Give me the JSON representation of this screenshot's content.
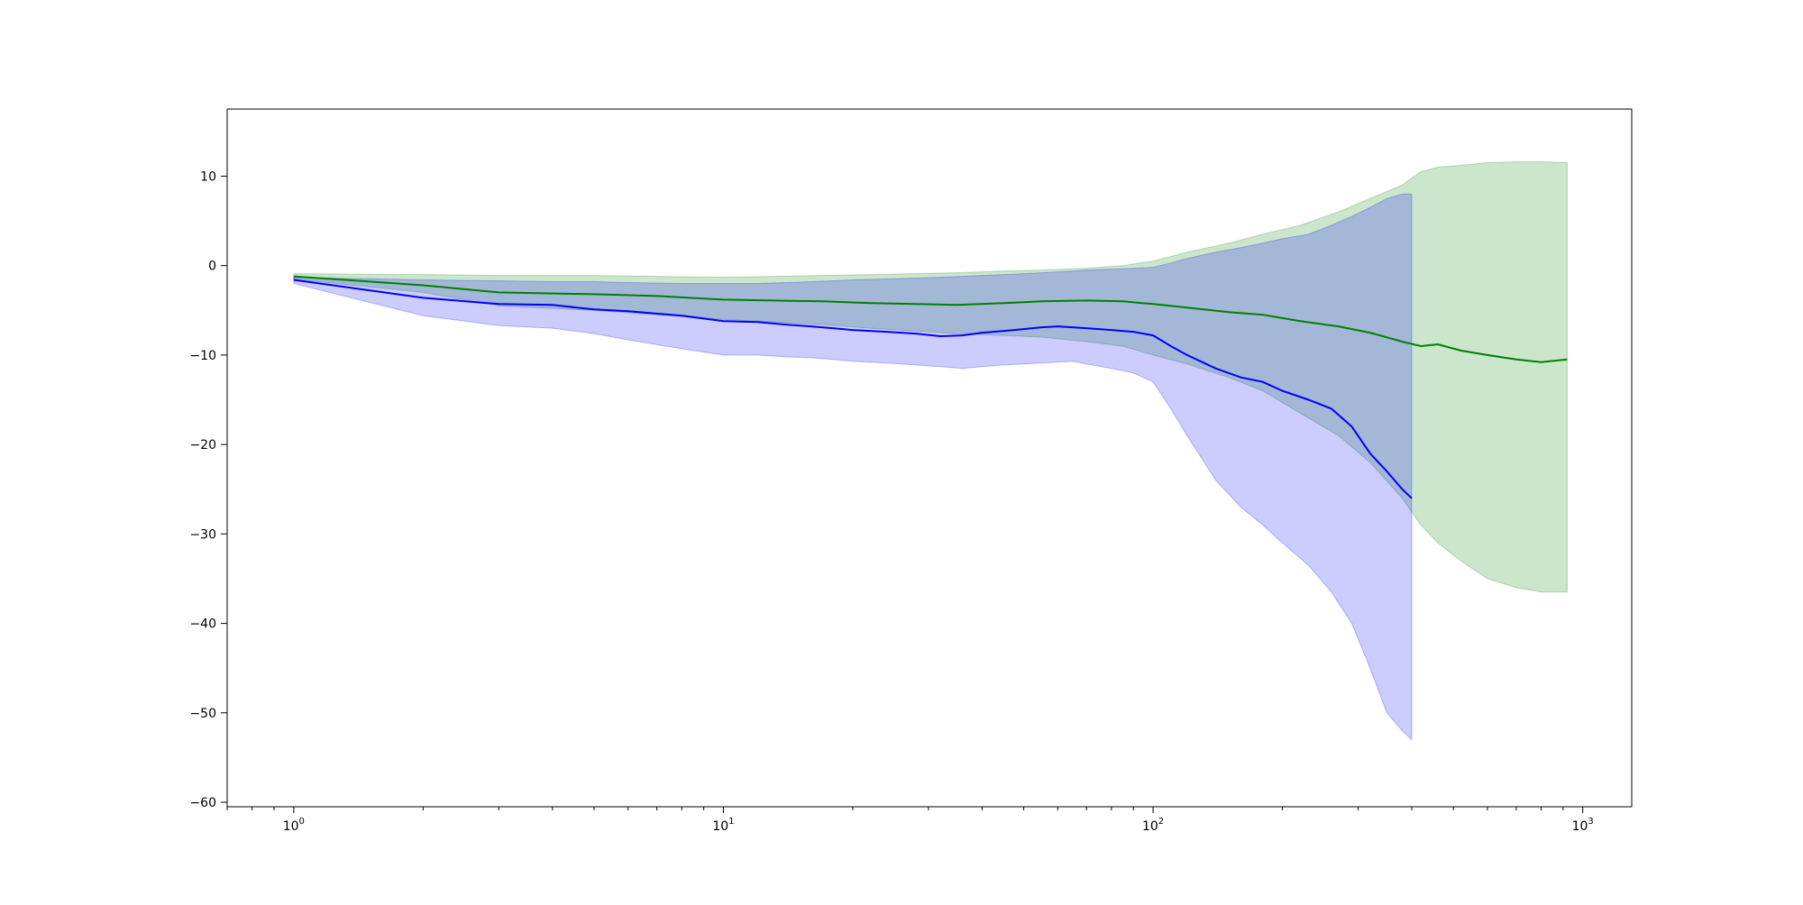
{
  "chart_data": {
    "type": "line",
    "title": "",
    "xlabel": "",
    "ylabel": "",
    "x_scale": "log",
    "xlim": [
      0.7,
      1300
    ],
    "ylim": [
      -60.5,
      17.5
    ],
    "grid": false,
    "legend": "none",
    "x_ticks": [
      {
        "value": 1,
        "base": "10",
        "exp": "0"
      },
      {
        "value": 10,
        "base": "10",
        "exp": "1"
      },
      {
        "value": 100,
        "base": "10",
        "exp": "2"
      },
      {
        "value": 1000,
        "base": "10",
        "exp": "3"
      }
    ],
    "y_ticks": [
      {
        "value": 10,
        "label": "10"
      },
      {
        "value": 0,
        "label": "0"
      },
      {
        "value": -10,
        "label": "−10"
      },
      {
        "value": -20,
        "label": "−20"
      },
      {
        "value": -30,
        "label": "−30"
      },
      {
        "value": -40,
        "label": "−40"
      },
      {
        "value": -50,
        "label": "−50"
      },
      {
        "value": -60,
        "label": "−60"
      }
    ],
    "series": [
      {
        "color": "#008000",
        "band_color": "#008000",
        "band_opacity": 0.2,
        "x": [
          1,
          2,
          3,
          5,
          7,
          10,
          13,
          17,
          22,
          28,
          35,
          45,
          55,
          70,
          85,
          100,
          120,
          150,
          180,
          220,
          270,
          320,
          380,
          420,
          460,
          520,
          600,
          700,
          800,
          920
        ],
        "y": [
          -1.2,
          -2.2,
          -3.0,
          -3.2,
          -3.4,
          -3.8,
          -3.9,
          -4.0,
          -4.2,
          -4.3,
          -4.4,
          -4.2,
          -4.0,
          -3.9,
          -4.0,
          -4.3,
          -4.7,
          -5.2,
          -5.5,
          -6.2,
          -6.8,
          -7.5,
          -8.5,
          -9.0,
          -8.8,
          -9.5,
          -10.0,
          -10.5,
          -10.8,
          -10.5
        ],
        "upper": [
          -0.9,
          -1.0,
          -1.1,
          -1.1,
          -1.2,
          -1.3,
          -1.2,
          -1.1,
          -1.0,
          -0.9,
          -0.8,
          -0.6,
          -0.5,
          -0.3,
          0.0,
          0.5,
          1.5,
          2.5,
          3.5,
          4.5,
          6.0,
          7.5,
          9.0,
          10.5,
          11.0,
          11.2,
          11.5,
          11.6,
          11.6,
          11.5
        ],
        "lower": [
          -1.5,
          -3.0,
          -4.5,
          -5.0,
          -5.5,
          -6.0,
          -6.3,
          -6.6,
          -7.0,
          -7.3,
          -7.6,
          -7.8,
          -8.0,
          -8.5,
          -9.0,
          -10.0,
          -11.0,
          -12.5,
          -14.0,
          -16.5,
          -19.0,
          -22.0,
          -26.0,
          -29.0,
          -31.0,
          -33.0,
          -35.0,
          -36.0,
          -36.5,
          -36.5
        ]
      },
      {
        "color": "#0000ff",
        "band_color": "#0000ff",
        "band_opacity": 0.2,
        "x": [
          1,
          2,
          3,
          4,
          5,
          6,
          8,
          10,
          12,
          14,
          16,
          18,
          20,
          24,
          28,
          32,
          36,
          40,
          45,
          50,
          55,
          60,
          65,
          70,
          80,
          90,
          100,
          110,
          120,
          140,
          160,
          180,
          200,
          230,
          260,
          290,
          320,
          350,
          380,
          400
        ],
        "y": [
          -1.6,
          -3.6,
          -4.3,
          -4.4,
          -4.9,
          -5.1,
          -5.6,
          -6.2,
          -6.3,
          -6.6,
          -6.8,
          -7.0,
          -7.2,
          -7.4,
          -7.6,
          -7.9,
          -7.8,
          -7.5,
          -7.3,
          -7.1,
          -6.9,
          -6.8,
          -6.9,
          -7.0,
          -7.2,
          -7.4,
          -7.8,
          -9.0,
          -10.0,
          -11.5,
          -12.5,
          -13.0,
          -14.0,
          -15.0,
          -16.0,
          -18.0,
          -21.0,
          -23.0,
          -25.0,
          -26.0
        ],
        "upper": [
          -1.3,
          -1.6,
          -1.7,
          -1.8,
          -1.8,
          -1.9,
          -2.0,
          -2.0,
          -2.0,
          -1.9,
          -1.8,
          -1.7,
          -1.6,
          -1.5,
          -1.4,
          -1.3,
          -1.2,
          -1.1,
          -1.0,
          -0.9,
          -0.8,
          -0.7,
          -0.6,
          -0.5,
          -0.4,
          -0.3,
          -0.2,
          0.3,
          0.8,
          1.5,
          2.0,
          2.5,
          3.0,
          3.5,
          4.5,
          5.5,
          6.5,
          7.5,
          8.0,
          8.0
        ],
        "lower": [
          -2.0,
          -5.6,
          -6.7,
          -7.0,
          -7.6,
          -8.3,
          -9.3,
          -10.0,
          -10.0,
          -10.2,
          -10.3,
          -10.5,
          -10.7,
          -10.9,
          -11.1,
          -11.3,
          -11.5,
          -11.3,
          -11.1,
          -11.0,
          -10.9,
          -10.8,
          -10.7,
          -11.0,
          -11.5,
          -12.0,
          -13.0,
          -16.0,
          -19.0,
          -24.0,
          -27.0,
          -29.0,
          -31.0,
          -33.5,
          -36.5,
          -40.0,
          -45.0,
          -50.0,
          -52.0,
          -53.0
        ]
      }
    ]
  }
}
